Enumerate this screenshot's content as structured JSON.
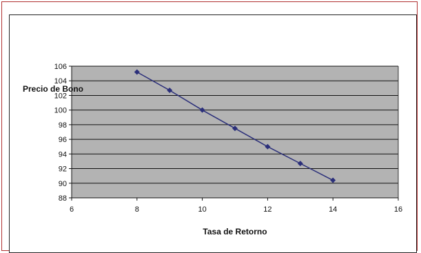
{
  "colors": {
    "frame_border": "#b03030",
    "plot_background": "#b3b3b3",
    "gridline": "#111111",
    "series": "#2b2f7a"
  },
  "chart_data": {
    "type": "scatter",
    "title": "",
    "xlabel": "Tasa de Retorno",
    "ylabel": "Precio de Bono",
    "xlim": [
      6,
      16
    ],
    "ylim": [
      88,
      106
    ],
    "x_ticks": [
      6,
      8,
      10,
      12,
      14,
      16
    ],
    "y_ticks": [
      88,
      90,
      92,
      94,
      96,
      98,
      100,
      102,
      104,
      106
    ],
    "grid": true,
    "legend": "none",
    "series": [
      {
        "marker": "diamond",
        "line": true,
        "x": [
          8,
          9,
          10,
          11,
          12,
          13,
          14
        ],
        "y": [
          105.2,
          102.7,
          100.0,
          97.5,
          95.0,
          92.7,
          90.4
        ]
      }
    ]
  }
}
